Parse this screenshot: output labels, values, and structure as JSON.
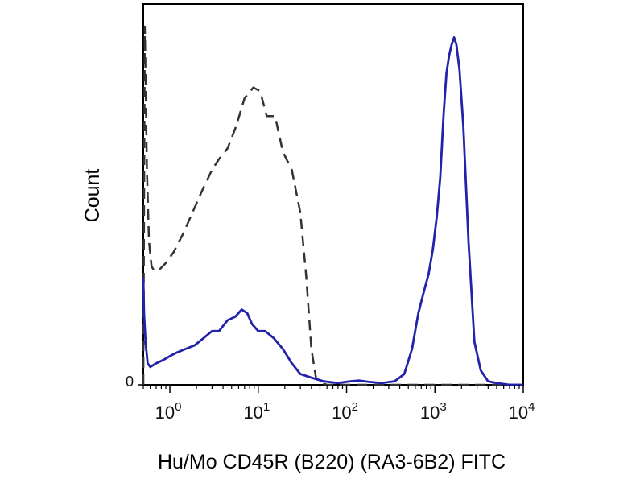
{
  "chart_data": {
    "type": "line",
    "title": "",
    "xlabel": "Hu/Mo CD45R (B220) (RA3-6B2) FITC",
    "ylabel": "Count",
    "x_scale": "log",
    "xlim": [
      0.5,
      10000
    ],
    "ylim": [
      0,
      100
    ],
    "x_ticks": [
      {
        "value": 1,
        "base": "10",
        "exp": "0"
      },
      {
        "value": 10,
        "base": "10",
        "exp": "1"
      },
      {
        "value": 100,
        "base": "10",
        "exp": "2"
      },
      {
        "value": 1000,
        "base": "10",
        "exp": "3"
      },
      {
        "value": 10000,
        "base": "10",
        "exp": "4"
      }
    ],
    "y_ticks": [
      {
        "value": 0,
        "label": "0"
      }
    ],
    "grid": false,
    "series": [
      {
        "style": "dashed",
        "color": "#333333",
        "x": [
          0.5,
          0.52,
          0.55,
          0.58,
          0.62,
          0.66,
          0.75,
          0.9,
          1.1,
          1.4,
          1.8,
          2.3,
          3.0,
          3.6,
          4.5,
          5.6,
          7.0,
          8.8,
          10.5,
          12.5,
          15.5,
          19.0,
          24.0,
          30.0,
          35.0,
          40.0,
          45.0,
          52.0,
          60.0,
          100.0,
          300.0,
          1000.0,
          3000.0,
          10000.0
        ],
        "y": [
          0,
          100,
          60,
          40,
          33,
          32,
          32,
          34,
          37,
          42,
          48,
          54,
          60,
          63,
          66,
          72,
          80,
          83,
          82,
          75,
          75,
          65,
          60,
          48,
          30,
          10,
          2,
          0.5,
          0,
          0,
          0,
          0,
          0,
          0
        ]
      },
      {
        "style": "solid",
        "color": "#2222aa",
        "x": [
          0.5,
          0.51,
          0.53,
          0.56,
          0.6,
          0.7,
          0.85,
          1.0,
          1.2,
          1.5,
          1.9,
          2.4,
          3.0,
          3.6,
          4.5,
          5.5,
          6.5,
          7.5,
          8.5,
          10.0,
          12.0,
          15.0,
          19.0,
          24.0,
          30.0,
          40.0,
          55.0,
          80.0,
          110.0,
          140.0,
          180.0,
          250.0,
          350.0,
          450.0,
          550.0,
          650.0,
          750.0,
          850.0,
          950.0,
          1050.0,
          1150.0,
          1250.0,
          1350.0,
          1450.0,
          1550.0,
          1650.0,
          1750.0,
          1900.0,
          2100.0,
          2400.0,
          2800.0,
          3300.0,
          4000.0,
          5000.0,
          7000.0,
          10000.0
        ],
        "y": [
          30,
          20,
          12,
          6,
          5,
          6,
          7,
          8,
          9,
          10,
          11,
          13,
          15,
          15,
          18,
          19,
          21,
          20,
          17,
          15,
          15,
          13,
          10,
          6,
          3,
          2,
          1,
          0.5,
          1,
          1.2,
          0.8,
          0.5,
          1,
          3,
          10,
          20,
          26,
          31,
          38,
          47,
          58,
          75,
          87,
          92,
          95,
          97,
          95,
          88,
          72,
          40,
          12,
          4,
          1,
          0.5,
          0,
          0
        ]
      }
    ]
  }
}
